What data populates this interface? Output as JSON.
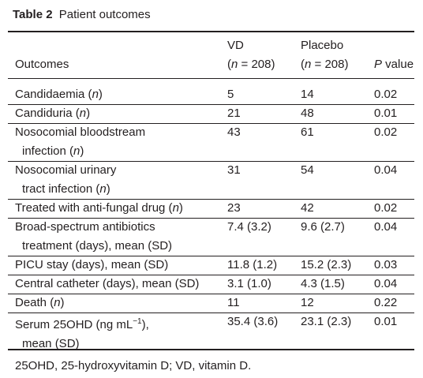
{
  "table": {
    "label": "Table 2",
    "title": "Patient outcomes",
    "headers": {
      "outcomes": "Outcomes",
      "vd": "VD",
      "vd_n": "(n = 208)",
      "placebo": "Placebo",
      "placebo_n": "(n = 208)",
      "pvalue": "P value"
    },
    "rows": [
      {
        "line1": "Candidaemia (n)",
        "line2": "",
        "vd": "5",
        "placebo": "14",
        "p": "0.02"
      },
      {
        "line1": "Candiduria (n)",
        "line2": "",
        "vd": "21",
        "placebo": "48",
        "p": "0.01"
      },
      {
        "line1": "Nosocomial bloodstream",
        "line2": "infection (n)",
        "vd": "43",
        "placebo": "61",
        "p": "0.02"
      },
      {
        "line1": "Nosocomial urinary",
        "line2": "tract infection (n)",
        "vd": "31",
        "placebo": "54",
        "p": "0.04"
      },
      {
        "line1": "Treated with anti-fungal drug (n)",
        "line2": "",
        "vd": "23",
        "placebo": "42",
        "p": "0.02"
      },
      {
        "line1": "Broad-spectrum antibiotics",
        "line2": "treatment (days), mean (SD)",
        "vd": "7.4 (3.2)",
        "placebo": "9.6 (2.7)",
        "p": "0.04"
      },
      {
        "line1": "PICU stay (days), mean (SD)",
        "line2": "",
        "vd": "11.8 (1.2)",
        "placebo": "15.2 (2.3)",
        "p": "0.03"
      },
      {
        "line1": "Central catheter (days), mean (SD)",
        "line2": "",
        "vd": "3.1 (1.0)",
        "placebo": "4.3 (1.5)",
        "p": "0.04"
      },
      {
        "line1": "Death (n)",
        "line2": "",
        "vd": "11",
        "placebo": "12",
        "p": "0.22"
      },
      {
        "line1": "Serum 25OHD (ng mL−1),",
        "line2": "mean (SD)",
        "vd": "35.4 (3.6)",
        "placebo": "23.1 (2.3)",
        "p": "0.01"
      }
    ],
    "footnote": "25OHD, 25-hydroxyvitamin D; VD, vitamin D."
  }
}
